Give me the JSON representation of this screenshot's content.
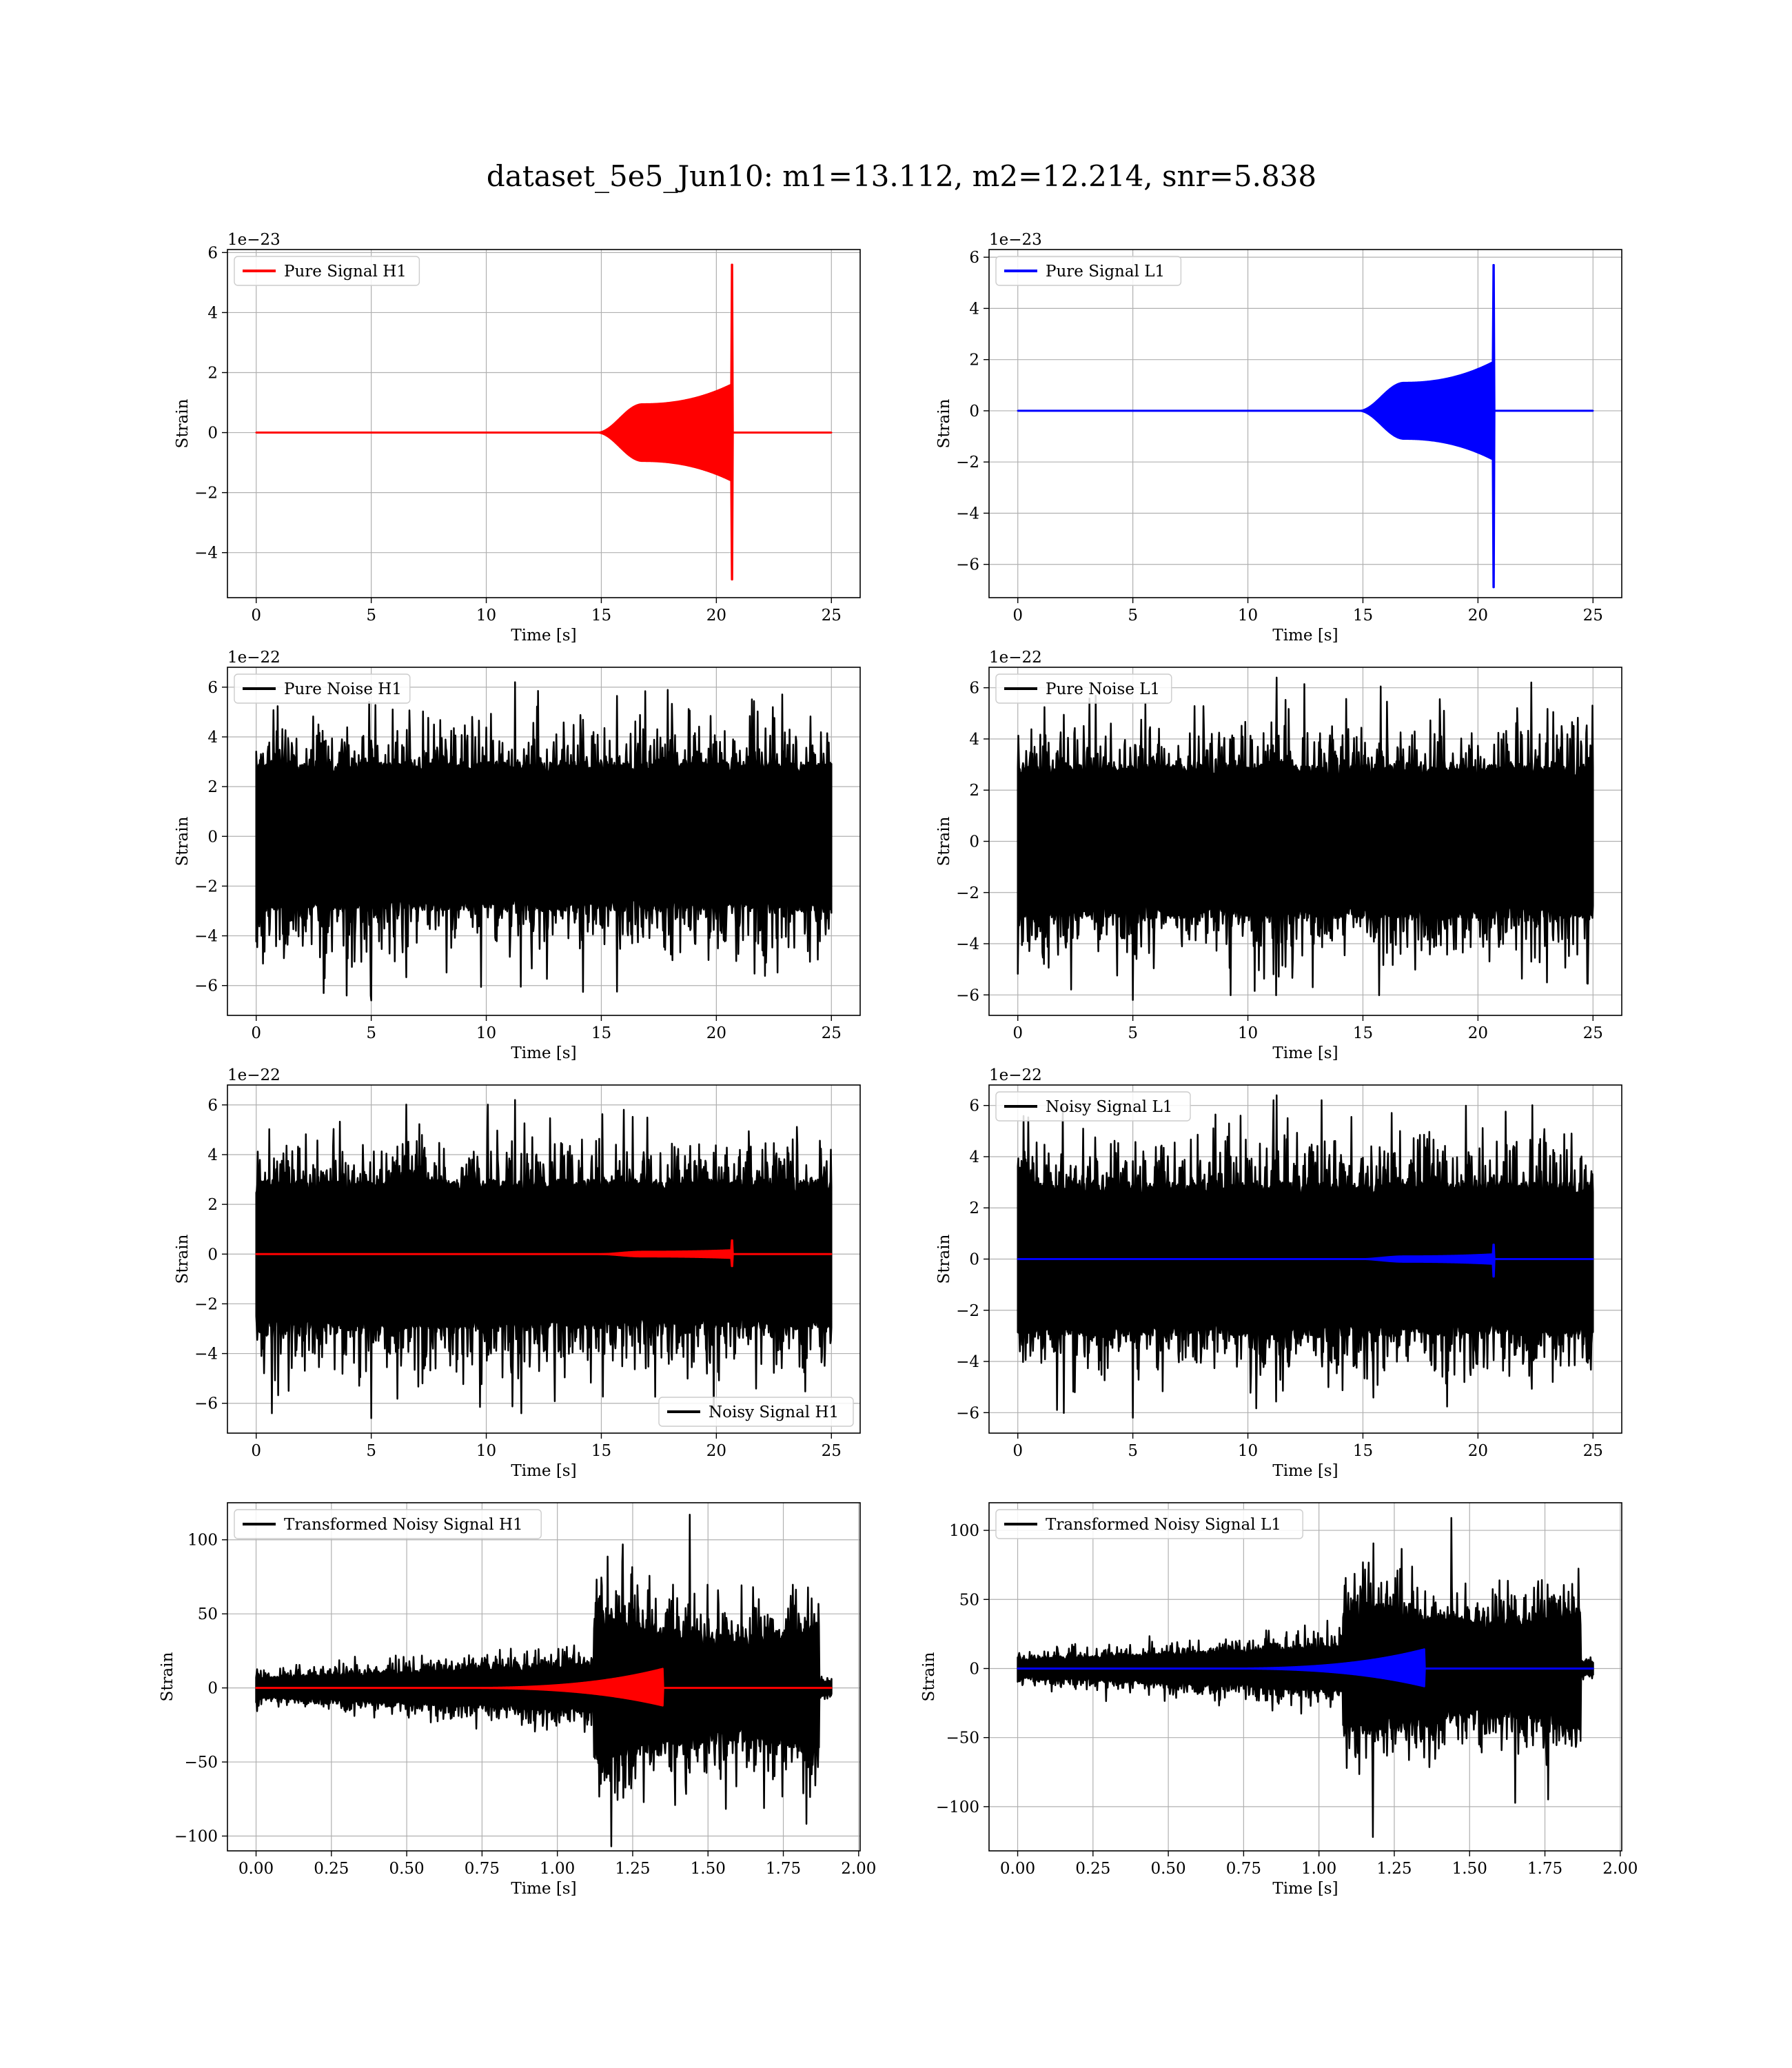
{
  "figure": {
    "title": "dataset_5e5_Jun10: m1=13.112, m2=12.214, snr=5.838"
  },
  "chart_data": [
    {
      "type": "line",
      "panel": "pure-signal-h1",
      "kind": "chirp",
      "xlabel": "Time [s]",
      "ylabel": "Strain",
      "offset_text": "1e−23",
      "xlim": [
        -1.25,
        26.25
      ],
      "ylim": [
        -5.5,
        6.1
      ],
      "xticks": [
        0,
        5,
        10,
        15,
        20,
        25
      ],
      "yticks": [
        -4,
        -2,
        0,
        2,
        4,
        6
      ],
      "legend": {
        "position": "upper-left"
      },
      "series": [
        {
          "name": "Pure Signal H1",
          "color": "#ff0000",
          "x_range": [
            0,
            25
          ],
          "onset": 14.8,
          "plateau_x": 16.8,
          "plateau": 0.95,
          "grow_end": 1.6,
          "merger_x": 20.7,
          "peak_pos": 5.6,
          "peak_neg": -4.9
        }
      ]
    },
    {
      "type": "line",
      "panel": "pure-signal-l1",
      "kind": "chirp",
      "xlabel": "Time [s]",
      "ylabel": "Strain",
      "offset_text": "1e−23",
      "xlim": [
        -1.25,
        26.25
      ],
      "ylim": [
        -7.3,
        6.3
      ],
      "xticks": [
        0,
        5,
        10,
        15,
        20,
        25
      ],
      "yticks": [
        -6,
        -4,
        -2,
        0,
        2,
        4,
        6
      ],
      "legend": {
        "position": "upper-left"
      },
      "series": [
        {
          "name": "Pure Signal L1",
          "color": "#0000ff",
          "x_range": [
            0,
            25
          ],
          "onset": 14.8,
          "plateau_x": 16.8,
          "plateau": 1.1,
          "grow_end": 1.9,
          "merger_x": 20.7,
          "peak_pos": 5.7,
          "peak_neg": -6.9
        }
      ]
    },
    {
      "type": "line",
      "panel": "pure-noise-h1",
      "kind": "noise",
      "xlabel": "Time [s]",
      "ylabel": "Strain",
      "offset_text": "1e−22",
      "xlim": [
        -1.25,
        26.25
      ],
      "ylim": [
        -7.2,
        6.8
      ],
      "xticks": [
        0,
        5,
        10,
        15,
        20,
        25
      ],
      "yticks": [
        -6,
        -4,
        -2,
        0,
        2,
        4,
        6
      ],
      "legend": {
        "position": "upper-left"
      },
      "series": [
        {
          "name": "Pure Noise H1",
          "color": "#000000",
          "x_range": [
            0,
            25
          ],
          "core": 3.0,
          "max": 6.2,
          "min": -6.6
        }
      ]
    },
    {
      "type": "line",
      "panel": "pure-noise-l1",
      "kind": "noise",
      "xlabel": "Time [s]",
      "ylabel": "Strain",
      "offset_text": "1e−22",
      "xlim": [
        -1.25,
        26.25
      ],
      "ylim": [
        -6.8,
        6.8
      ],
      "xticks": [
        0,
        5,
        10,
        15,
        20,
        25
      ],
      "yticks": [
        -6,
        -4,
        -2,
        0,
        2,
        4,
        6
      ],
      "legend": {
        "position": "upper-left"
      },
      "series": [
        {
          "name": "Pure Noise L1",
          "color": "#000000",
          "x_range": [
            0,
            25
          ],
          "core": 3.0,
          "max": 6.4,
          "min": -6.2
        }
      ]
    },
    {
      "type": "line",
      "panel": "noisy-signal-h1",
      "kind": "noisy",
      "xlabel": "Time [s]",
      "ylabel": "Strain",
      "offset_text": "1e−22",
      "xlim": [
        -1.25,
        26.25
      ],
      "ylim": [
        -7.2,
        6.8
      ],
      "xticks": [
        0,
        5,
        10,
        15,
        20,
        25
      ],
      "yticks": [
        -6,
        -4,
        -2,
        0,
        2,
        4,
        6
      ],
      "legend": {
        "position": "lower-right"
      },
      "series": [
        {
          "name": "Noisy Signal H1",
          "color": "#000000",
          "x_range": [
            0,
            25
          ],
          "core": 3.0,
          "max": 6.2,
          "min": -6.6
        },
        {
          "name": "",
          "color": "#ff0000",
          "x_range": [
            0,
            25
          ],
          "onset": 14.8,
          "plateau_x": 16.8,
          "plateau": 0.1,
          "grow_end": 0.16,
          "merger_x": 20.7,
          "peak_pos": 0.56,
          "peak_neg": -0.49
        }
      ]
    },
    {
      "type": "line",
      "panel": "noisy-signal-l1",
      "kind": "noisy",
      "xlabel": "Time [s]",
      "ylabel": "Strain",
      "offset_text": "1e−22",
      "xlim": [
        -1.25,
        26.25
      ],
      "ylim": [
        -6.8,
        6.8
      ],
      "xticks": [
        0,
        5,
        10,
        15,
        20,
        25
      ],
      "yticks": [
        -6,
        -4,
        -2,
        0,
        2,
        4,
        6
      ],
      "legend": {
        "position": "upper-left"
      },
      "series": [
        {
          "name": "Noisy Signal L1",
          "color": "#000000",
          "x_range": [
            0,
            25
          ],
          "core": 3.0,
          "max": 6.4,
          "min": -6.2
        },
        {
          "name": "",
          "color": "#0000ff",
          "x_range": [
            0,
            25
          ],
          "onset": 14.8,
          "plateau_x": 16.8,
          "plateau": 0.11,
          "grow_end": 0.19,
          "merger_x": 20.7,
          "peak_pos": 0.57,
          "peak_neg": -0.69
        }
      ]
    },
    {
      "type": "line",
      "panel": "transformed-noisy-signal-h1",
      "kind": "whitened",
      "xlabel": "Time [s]",
      "ylabel": "Strain",
      "offset_text": "",
      "xlim": [
        -0.095,
        2.005
      ],
      "ylim": [
        -110,
        125
      ],
      "xticks": [
        0.0,
        0.25,
        0.5,
        0.75,
        1.0,
        1.25,
        1.5,
        1.75,
        2.0
      ],
      "xtick_decimals": 2,
      "yticks": [
        -100,
        -50,
        0,
        50,
        100
      ],
      "legend": {
        "position": "upper-left"
      },
      "series": [
        {
          "name": "Transformed Noisy Signal H1",
          "color": "#000000",
          "x_range": [
            0,
            1.91
          ],
          "jump_x": 1.12,
          "end_x": 1.87,
          "max": 117,
          "min": -107
        },
        {
          "name": "",
          "color": "#ff0000",
          "x_range": [
            0,
            1.91
          ],
          "onset": 0.6,
          "merger_x": 1.35,
          "peak_pos": 13,
          "peak_neg": -12
        }
      ]
    },
    {
      "type": "line",
      "panel": "transformed-noisy-signal-l1",
      "kind": "whitened",
      "xlabel": "Time [s]",
      "ylabel": "Strain",
      "offset_text": "",
      "xlim": [
        -0.095,
        2.005
      ],
      "ylim": [
        -132,
        120
      ],
      "xticks": [
        0.0,
        0.25,
        0.5,
        0.75,
        1.0,
        1.25,
        1.5,
        1.75,
        2.0
      ],
      "xtick_decimals": 2,
      "yticks": [
        -100,
        -50,
        0,
        50,
        100
      ],
      "legend": {
        "position": "upper-left"
      },
      "series": [
        {
          "name": "Transformed Noisy Signal L1",
          "color": "#000000",
          "x_range": [
            0,
            1.91
          ],
          "jump_x": 1.08,
          "end_x": 1.87,
          "max": 109,
          "min": -122
        },
        {
          "name": "",
          "color": "#0000ff",
          "x_range": [
            0,
            1.91
          ],
          "onset": 0.6,
          "merger_x": 1.35,
          "peak_pos": 14,
          "peak_neg": -13
        }
      ]
    }
  ]
}
